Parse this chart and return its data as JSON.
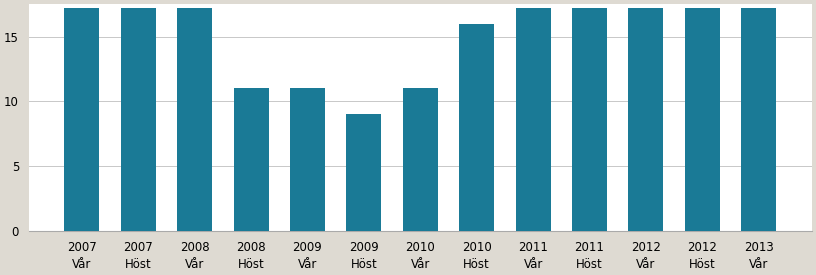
{
  "categories_line1": [
    "2007",
    "2007",
    "2008",
    "2008",
    "2009",
    "2009",
    "2010",
    "2010",
    "2011",
    "2011",
    "2012",
    "2012",
    "2013"
  ],
  "categories_line2": [
    "Vår",
    "Höst",
    "Vår",
    "Höst",
    "Vår",
    "Höst",
    "Vår",
    "Höst",
    "Vår",
    "Höst",
    "Vår",
    "Höst",
    "Vår"
  ],
  "values": [
    17.2,
    17.2,
    17.2,
    11.0,
    11.0,
    9.0,
    11.0,
    16.0,
    17.2,
    17.2,
    17.2,
    17.2,
    17.2
  ],
  "bar_color": "#1a7a96",
  "figure_bg_color": "#dedad2",
  "plot_bg_color": "#ffffff",
  "ylim": [
    0,
    17.5
  ],
  "yticks": [
    0,
    5,
    10,
    15
  ],
  "grid_color": "#c8c8c8",
  "tick_fontsize": 8.5,
  "bar_width": 0.62
}
